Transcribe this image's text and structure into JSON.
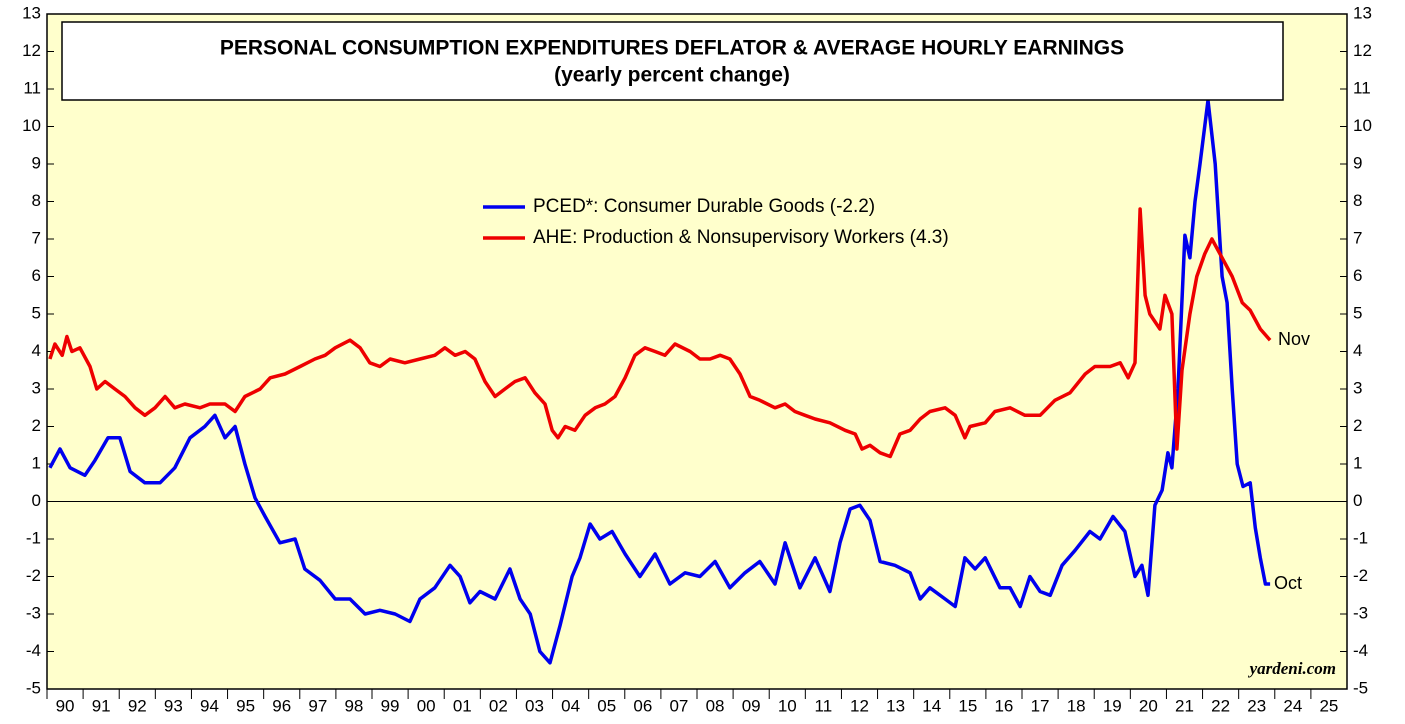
{
  "chart_data": {
    "type": "line",
    "title": "PERSONAL CONSUMPTION EXPENDITURES DEFLATOR & AVERAGE HOURLY EARNINGS",
    "subtitle": "(yearly percent change)",
    "source": "yardeni.com",
    "annotations": [
      "Nov",
      "Oct"
    ],
    "xlim": [
      1990,
      2026
    ],
    "xticks": [
      {
        "value": 1990,
        "label": "90"
      },
      {
        "value": 1991,
        "label": "91"
      },
      {
        "value": 1992,
        "label": "92"
      },
      {
        "value": 1993,
        "label": "93"
      },
      {
        "value": 1994,
        "label": "94"
      },
      {
        "value": 1995,
        "label": "95"
      },
      {
        "value": 1996,
        "label": "96"
      },
      {
        "value": 1997,
        "label": "97"
      },
      {
        "value": 1998,
        "label": "98"
      },
      {
        "value": 1999,
        "label": "99"
      },
      {
        "value": 2000,
        "label": "00"
      },
      {
        "value": 2001,
        "label": "01"
      },
      {
        "value": 2002,
        "label": "02"
      },
      {
        "value": 2003,
        "label": "03"
      },
      {
        "value": 2004,
        "label": "04"
      },
      {
        "value": 2005,
        "label": "05"
      },
      {
        "value": 2006,
        "label": "06"
      },
      {
        "value": 2007,
        "label": "07"
      },
      {
        "value": 2008,
        "label": "08"
      },
      {
        "value": 2009,
        "label": "09"
      },
      {
        "value": 2010,
        "label": "10"
      },
      {
        "value": 2011,
        "label": "11"
      },
      {
        "value": 2012,
        "label": "12"
      },
      {
        "value": 2013,
        "label": "13"
      },
      {
        "value": 2014,
        "label": "14"
      },
      {
        "value": 2015,
        "label": "15"
      },
      {
        "value": 2016,
        "label": "16"
      },
      {
        "value": 2017,
        "label": "17"
      },
      {
        "value": 2018,
        "label": "18"
      },
      {
        "value": 2019,
        "label": "19"
      },
      {
        "value": 2020,
        "label": "20"
      },
      {
        "value": 2021,
        "label": "21"
      },
      {
        "value": 2022,
        "label": "22"
      },
      {
        "value": 2023,
        "label": "23"
      },
      {
        "value": 2024,
        "label": "24"
      },
      {
        "value": 2025,
        "label": "25"
      }
    ],
    "ylim": [
      -5,
      13
    ],
    "yticks": [
      -5,
      -4,
      -3,
      -2,
      -1,
      0,
      1,
      2,
      3,
      4,
      5,
      6,
      7,
      8,
      9,
      10,
      11,
      12,
      13
    ],
    "series": [
      {
        "name": "PCED*: Consumer Durable Goods (-2.2)",
        "color": "#0000ee",
        "x": [
          1990.08,
          1990.36,
          1990.64,
          1991.05,
          1991.33,
          1991.69,
          1992.02,
          1992.3,
          1992.71,
          1993.13,
          1993.54,
          1993.96,
          1994.37,
          1994.65,
          1994.93,
          1995.21,
          1995.48,
          1995.76,
          1996.04,
          1996.45,
          1996.87,
          1997.14,
          1997.56,
          1997.98,
          1998.39,
          1998.81,
          1999.22,
          1999.64,
          2000.05,
          2000.33,
          2000.74,
          2001.16,
          2001.44,
          2001.71,
          2001.99,
          2002.41,
          2002.82,
          2003.1,
          2003.38,
          2003.65,
          2003.93,
          2004.21,
          2004.54,
          2004.76,
          2005.04,
          2005.31,
          2005.65,
          2006.01,
          2006.42,
          2006.84,
          2007.25,
          2007.67,
          2008.08,
          2008.5,
          2008.91,
          2009.33,
          2009.74,
          2010.16,
          2010.44,
          2010.85,
          2011.27,
          2011.68,
          2011.96,
          2012.24,
          2012.51,
          2012.79,
          2013.07,
          2013.48,
          2013.9,
          2014.18,
          2014.45,
          2014.87,
          2015.15,
          2015.42,
          2015.7,
          2015.98,
          2016.39,
          2016.67,
          2016.95,
          2017.22,
          2017.5,
          2017.78,
          2018.11,
          2018.47,
          2018.88,
          2019.16,
          2019.52,
          2019.85,
          2020.13,
          2020.32,
          2020.49,
          2020.68,
          2020.88,
          2021.04,
          2021.15,
          2021.32,
          2021.51,
          2021.65,
          2021.79,
          2021.93,
          2022.15,
          2022.35,
          2022.54,
          2022.68,
          2022.82,
          2022.96,
          2023.12,
          2023.32,
          2023.46,
          2023.6,
          2023.74,
          2023.87
        ],
        "values": [
          0.9,
          1.4,
          0.9,
          0.7,
          1.1,
          1.7,
          1.7,
          0.8,
          0.5,
          0.5,
          0.9,
          1.7,
          2.0,
          2.3,
          1.7,
          2.0,
          1.0,
          0.1,
          -0.4,
          -1.1,
          -1.0,
          -1.8,
          -2.1,
          -2.6,
          -2.6,
          -3.0,
          -2.9,
          -3.0,
          -3.2,
          -2.6,
          -2.3,
          -1.7,
          -2.0,
          -2.7,
          -2.4,
          -2.6,
          -1.8,
          -2.6,
          -3.0,
          -4.0,
          -4.3,
          -3.3,
          -2.0,
          -1.5,
          -0.6,
          -1.0,
          -0.8,
          -1.4,
          -2.0,
          -1.4,
          -2.2,
          -1.9,
          -2.0,
          -1.6,
          -2.3,
          -1.9,
          -1.6,
          -2.2,
          -1.1,
          -2.3,
          -1.5,
          -2.4,
          -1.1,
          -0.2,
          -0.1,
          -0.5,
          -1.6,
          -1.7,
          -1.9,
          -2.6,
          -2.3,
          -2.6,
          -2.8,
          -1.5,
          -1.8,
          -1.5,
          -2.3,
          -2.3,
          -2.8,
          -2.0,
          -2.4,
          -2.5,
          -1.7,
          -1.3,
          -0.8,
          -1.0,
          -0.4,
          -0.8,
          -2.0,
          -1.7,
          -2.5,
          -0.1,
          0.3,
          1.3,
          0.9,
          3.0,
          7.1,
          6.5,
          8.0,
          9.0,
          10.7,
          9.0,
          6.0,
          5.3,
          3.0,
          1.0,
          0.4,
          0.5,
          -0.7,
          -1.5,
          -2.2,
          -2.2
        ]
      },
      {
        "name": "AHE: Production & Nonsupervisory Workers (4.3)",
        "color": "#ee0000",
        "x": [
          1990.08,
          1990.22,
          1990.42,
          1990.55,
          1990.69,
          1990.91,
          1991.19,
          1991.38,
          1991.61,
          1991.88,
          1992.16,
          1992.44,
          1992.71,
          1992.99,
          1993.27,
          1993.54,
          1993.82,
          1994.24,
          1994.51,
          1994.93,
          1995.21,
          1995.48,
          1995.9,
          1996.18,
          1996.59,
          1997.01,
          1997.42,
          1997.7,
          1997.98,
          1998.39,
          1998.67,
          1998.94,
          1999.22,
          1999.5,
          1999.91,
          2000.33,
          2000.74,
          2001.02,
          2001.3,
          2001.58,
          2001.85,
          2002.13,
          2002.41,
          2002.68,
          2002.96,
          2003.24,
          2003.51,
          2003.79,
          2003.99,
          2004.15,
          2004.35,
          2004.62,
          2004.9,
          2005.18,
          2005.45,
          2005.73,
          2006.01,
          2006.28,
          2006.56,
          2006.84,
          2007.11,
          2007.39,
          2007.81,
          2008.08,
          2008.36,
          2008.64,
          2008.91,
          2009.19,
          2009.47,
          2009.74,
          2010.16,
          2010.44,
          2010.71,
          2010.99,
          2011.27,
          2011.68,
          2012.1,
          2012.38,
          2012.57,
          2012.79,
          2013.07,
          2013.35,
          2013.62,
          2013.9,
          2014.18,
          2014.45,
          2014.87,
          2015.15,
          2015.42,
          2015.56,
          2015.98,
          2016.25,
          2016.67,
          2017.08,
          2017.5,
          2017.91,
          2018.33,
          2018.75,
          2019.02,
          2019.44,
          2019.72,
          2019.94,
          2020.13,
          2020.27,
          2020.41,
          2020.54,
          2020.82,
          2020.96,
          2021.15,
          2021.29,
          2021.43,
          2021.65,
          2021.84,
          2022.06,
          2022.26,
          2022.54,
          2022.82,
          2023.1,
          2023.32,
          2023.6,
          2023.87
        ],
        "values": [
          3.8,
          4.2,
          3.9,
          4.4,
          4.0,
          4.1,
          3.6,
          3.0,
          3.2,
          3.0,
          2.8,
          2.5,
          2.3,
          2.5,
          2.8,
          2.5,
          2.6,
          2.5,
          2.6,
          2.6,
          2.4,
          2.8,
          3.0,
          3.3,
          3.4,
          3.6,
          3.8,
          3.9,
          4.1,
          4.3,
          4.1,
          3.7,
          3.6,
          3.8,
          3.7,
          3.8,
          3.9,
          4.1,
          3.9,
          4.0,
          3.8,
          3.2,
          2.8,
          3.0,
          3.2,
          3.3,
          2.9,
          2.6,
          1.9,
          1.7,
          2.0,
          1.9,
          2.3,
          2.5,
          2.6,
          2.8,
          3.3,
          3.9,
          4.1,
          4.0,
          3.9,
          4.2,
          4.0,
          3.8,
          3.8,
          3.9,
          3.8,
          3.4,
          2.8,
          2.7,
          2.5,
          2.6,
          2.4,
          2.3,
          2.2,
          2.1,
          1.9,
          1.8,
          1.4,
          1.5,
          1.3,
          1.2,
          1.8,
          1.9,
          2.2,
          2.4,
          2.5,
          2.3,
          1.7,
          2.0,
          2.1,
          2.4,
          2.5,
          2.3,
          2.3,
          2.7,
          2.9,
          3.4,
          3.6,
          3.6,
          3.7,
          3.3,
          3.7,
          7.8,
          5.5,
          5.0,
          4.6,
          5.5,
          5.0,
          1.4,
          3.5,
          5.0,
          6.0,
          6.6,
          7.0,
          6.5,
          6.0,
          5.3,
          5.1,
          4.6,
          4.3
        ]
      }
    ]
  }
}
